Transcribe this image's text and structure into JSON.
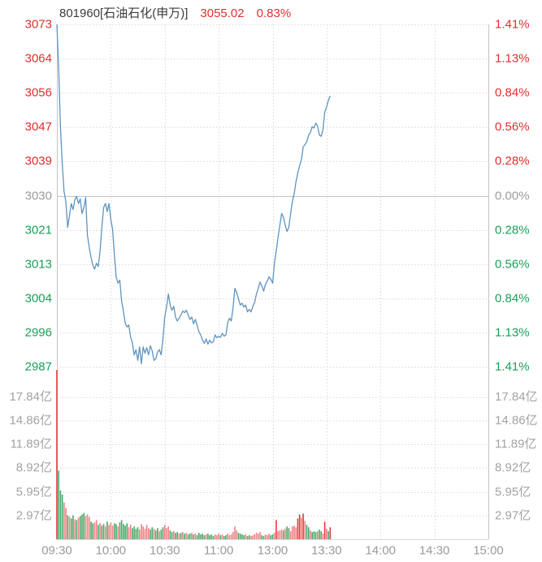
{
  "header": {
    "title": "801960[石油石化(申万)]",
    "price": "3055.02",
    "change_pct": "0.83%"
  },
  "colors": {
    "up": "#e12e2e",
    "down": "#18a058",
    "neutral": "#9c9c9c",
    "line": "#5f94bf",
    "grid": "#d9d9d9",
    "grid_strong": "#c3c3c3",
    "vol_red": "#ee8282",
    "vol_red_strong": "#e23a3a",
    "vol_green": "#4aa76a"
  },
  "price_axis": {
    "labels": [
      {
        "text": "3073",
        "tone": "up"
      },
      {
        "text": "3064",
        "tone": "up"
      },
      {
        "text": "3056",
        "tone": "up"
      },
      {
        "text": "3047",
        "tone": "up"
      },
      {
        "text": "3039",
        "tone": "up"
      },
      {
        "text": "3030",
        "tone": "neutral"
      },
      {
        "text": "3021",
        "tone": "down"
      },
      {
        "text": "3013",
        "tone": "down"
      },
      {
        "text": "3004",
        "tone": "down"
      },
      {
        "text": "2996",
        "tone": "down"
      },
      {
        "text": "2987",
        "tone": "down"
      }
    ]
  },
  "pct_axis": {
    "labels": [
      {
        "text": "1.41%",
        "tone": "up"
      },
      {
        "text": "1.13%",
        "tone": "up"
      },
      {
        "text": "0.84%",
        "tone": "up"
      },
      {
        "text": "0.56%",
        "tone": "up"
      },
      {
        "text": "0.28%",
        "tone": "up"
      },
      {
        "text": "0.00%",
        "tone": "neutral"
      },
      {
        "text": "0.28%",
        "tone": "down"
      },
      {
        "text": "0.56%",
        "tone": "down"
      },
      {
        "text": "0.84%",
        "tone": "down"
      },
      {
        "text": "1.13%",
        "tone": "down"
      },
      {
        "text": "1.41%",
        "tone": "down"
      }
    ]
  },
  "volume_axis": {
    "unit": "亿",
    "labels": [
      "17.84亿",
      "14.86亿",
      "11.89亿",
      "8.92亿",
      "5.95亿",
      "2.97亿"
    ],
    "tick_values": [
      17.84,
      14.86,
      11.89,
      8.92,
      5.95,
      2.97
    ]
  },
  "time_axis": {
    "labels": [
      "09:30",
      "10:00",
      "10:30",
      "11:00",
      "13:00",
      "13:30",
      "14:00",
      "14:30",
      "15:00"
    ]
  },
  "chart_data": {
    "type": "line",
    "title": "801960[石油石化(申万)]",
    "last_price": 3055.02,
    "change_percent": 0.83,
    "prev_close": 3030.1,
    "x_axis": {
      "labels": [
        "09:30",
        "10:00",
        "10:30",
        "11:00",
        "13:00",
        "13:30",
        "14:00",
        "14:30",
        "15:00"
      ],
      "sessions": [
        [
          "09:30",
          "11:30"
        ],
        [
          "13:00",
          "15:00"
        ]
      ],
      "total_minutes": 240,
      "last_minute": 152
    },
    "y_axis_price": {
      "min": 2987,
      "max": 3073,
      "ticks": [
        3073,
        3064,
        3056,
        3047,
        3039,
        3030,
        3021,
        3013,
        3004,
        2996,
        2987
      ]
    },
    "y_axis_percent": {
      "ticks": [
        1.41,
        1.13,
        0.84,
        0.56,
        0.28,
        0.0,
        -0.28,
        -0.56,
        -0.84,
        -1.13,
        -1.41
      ]
    },
    "y_axis_volume": {
      "unit": "亿",
      "ticks": [
        17.84,
        14.86,
        11.89,
        8.92,
        5.95,
        2.97
      ],
      "clip_max": 21.3
    },
    "price_points": [
      [
        0,
        3073
      ],
      [
        1,
        3062
      ],
      [
        2,
        3047
      ],
      [
        3,
        3038
      ],
      [
        4,
        3031
      ],
      [
        5,
        3028.5
      ],
      [
        6,
        3022
      ],
      [
        7,
        3025
      ],
      [
        8,
        3028
      ],
      [
        9,
        3026.5
      ],
      [
        10,
        3029
      ],
      [
        11,
        3029.8
      ],
      [
        12,
        3028
      ],
      [
        13,
        3029.2
      ],
      [
        14,
        3025.5
      ],
      [
        15,
        3027
      ],
      [
        16,
        3029.5
      ],
      [
        17,
        3020
      ],
      [
        18,
        3017
      ],
      [
        19,
        3014.5
      ],
      [
        20,
        3012.5
      ],
      [
        21,
        3011.5
      ],
      [
        22,
        3013
      ],
      [
        23,
        3012.2
      ],
      [
        24,
        3016
      ],
      [
        25,
        3022
      ],
      [
        26,
        3027
      ],
      [
        27,
        3028
      ],
      [
        28,
        3026
      ],
      [
        29,
        3028
      ],
      [
        30,
        3024
      ],
      [
        31,
        3021.5
      ],
      [
        32,
        3015
      ],
      [
        33,
        3009.5
      ],
      [
        34,
        3008
      ],
      [
        35,
        3008.8
      ],
      [
        36,
        3003.5
      ],
      [
        37,
        3001
      ],
      [
        38,
        2998
      ],
      [
        39,
        2997
      ],
      [
        40,
        2997.5
      ],
      [
        41,
        2994.5
      ],
      [
        42,
        2993
      ],
      [
        43,
        2990
      ],
      [
        44,
        2991.3
      ],
      [
        45,
        2988.6
      ],
      [
        46,
        2992
      ],
      [
        47,
        2987.8
      ],
      [
        48,
        2992
      ],
      [
        49,
        2990.4
      ],
      [
        50,
        2991.8
      ],
      [
        51,
        2990
      ],
      [
        52,
        2992.3
      ],
      [
        53,
        2991
      ],
      [
        54,
        2988.6
      ],
      [
        55,
        2989
      ],
      [
        56,
        2990.7
      ],
      [
        57,
        2991.3
      ],
      [
        58,
        2990
      ],
      [
        59,
        2994
      ],
      [
        60,
        2999.5
      ],
      [
        61,
        3002
      ],
      [
        62,
        3005.3
      ],
      [
        63,
        3002.5
      ],
      [
        64,
        3001.2
      ],
      [
        65,
        3002.2
      ],
      [
        66,
        2999.5
      ],
      [
        67,
        2998.5
      ],
      [
        68,
        2999.2
      ],
      [
        69,
        3000
      ],
      [
        70,
        3001
      ],
      [
        71,
        3000.6
      ],
      [
        72,
        3001.2
      ],
      [
        73,
        3000
      ],
      [
        74,
        2998.9
      ],
      [
        75,
        2999.5
      ],
      [
        76,
        2997.8
      ],
      [
        77,
        2998.9
      ],
      [
        78,
        2997.4
      ],
      [
        79,
        2995.8
      ],
      [
        80,
        2995
      ],
      [
        81,
        2993.7
      ],
      [
        82,
        2992.9
      ],
      [
        83,
        2994
      ],
      [
        84,
        2992.7
      ],
      [
        85,
        2993.7
      ],
      [
        86,
        2993
      ],
      [
        87,
        2993.3
      ],
      [
        88,
        2995
      ],
      [
        89,
        2994.3
      ],
      [
        90,
        2994.7
      ],
      [
        91,
        2994.4
      ],
      [
        92,
        2995.4
      ],
      [
        93,
        2994.7
      ],
      [
        94,
        2995
      ],
      [
        95,
        2998
      ],
      [
        96,
        2999.2
      ],
      [
        97,
        2998.5
      ],
      [
        98,
        3001.9
      ],
      [
        99,
        3006.7
      ],
      [
        100,
        3005.7
      ],
      [
        101,
        3004
      ],
      [
        102,
        3002.5
      ],
      [
        103,
        3003
      ],
      [
        104,
        3002
      ],
      [
        105,
        3002.5
      ],
      [
        106,
        3000.8
      ],
      [
        107,
        3001.4
      ],
      [
        108,
        3000.8
      ],
      [
        109,
        3002.2
      ],
      [
        110,
        3003.2
      ],
      [
        111,
        3005.3
      ],
      [
        112,
        3006.7
      ],
      [
        113,
        3008.3
      ],
      [
        114,
        3007.3
      ],
      [
        115,
        3006
      ],
      [
        116,
        3007.7
      ],
      [
        117,
        3008.5
      ],
      [
        118,
        3009.6
      ],
      [
        119,
        3009
      ],
      [
        120,
        3008
      ],
      [
        121,
        3013
      ],
      [
        122,
        3016
      ],
      [
        123,
        3019.5
      ],
      [
        124,
        3022.5
      ],
      [
        125,
        3025.5
      ],
      [
        126,
        3024.6
      ],
      [
        127,
        3022.6
      ],
      [
        128,
        3021
      ],
      [
        129,
        3022
      ],
      [
        130,
        3025.5
      ],
      [
        131,
        3028.5
      ],
      [
        132,
        3030.5
      ],
      [
        133,
        3033.5
      ],
      [
        134,
        3035.7
      ],
      [
        135,
        3037.5
      ],
      [
        136,
        3039
      ],
      [
        137,
        3042.2
      ],
      [
        138,
        3042.8
      ],
      [
        139,
        3043.5
      ],
      [
        140,
        3045.2
      ],
      [
        141,
        3045.8
      ],
      [
        142,
        3047.3
      ],
      [
        143,
        3047
      ],
      [
        144,
        3048.2
      ],
      [
        145,
        3047.5
      ],
      [
        146,
        3045.2
      ],
      [
        147,
        3044.9
      ],
      [
        148,
        3046.6
      ],
      [
        149,
        3051
      ],
      [
        150,
        3052.2
      ],
      [
        151,
        3053.9
      ],
      [
        152,
        3055.02
      ]
    ],
    "volume_bars": [
      [
        0,
        21.5,
        "R"
      ],
      [
        1,
        8.6,
        "g"
      ],
      [
        2,
        6.1,
        "g"
      ],
      [
        3,
        5.6,
        "g"
      ],
      [
        4,
        4.6,
        "r"
      ],
      [
        5,
        3.9,
        "r"
      ],
      [
        6,
        3.0,
        "g"
      ],
      [
        7,
        2.8,
        "r"
      ],
      [
        8,
        2.6,
        "g"
      ],
      [
        9,
        3.0,
        "g"
      ],
      [
        10,
        2.5,
        "r"
      ],
      [
        11,
        2.4,
        "g"
      ],
      [
        12,
        2.7,
        "r"
      ],
      [
        13,
        2.9,
        "g"
      ],
      [
        14,
        3.1,
        "g"
      ],
      [
        15,
        3.3,
        "g"
      ],
      [
        16,
        2.9,
        "r"
      ],
      [
        17,
        3.1,
        "r"
      ],
      [
        18,
        2.8,
        "r"
      ],
      [
        19,
        2.2,
        "g"
      ],
      [
        20,
        2.0,
        "g"
      ],
      [
        21,
        2.1,
        "r"
      ],
      [
        22,
        2.4,
        "r"
      ],
      [
        23,
        1.8,
        "g"
      ],
      [
        24,
        2.0,
        "r"
      ],
      [
        25,
        1.7,
        "g"
      ],
      [
        26,
        1.9,
        "g"
      ],
      [
        27,
        1.6,
        "r"
      ],
      [
        28,
        2.2,
        "g"
      ],
      [
        29,
        1.8,
        "r"
      ],
      [
        30,
        2.1,
        "r"
      ],
      [
        31,
        1.7,
        "r"
      ],
      [
        32,
        2.0,
        "g"
      ],
      [
        33,
        1.9,
        "g"
      ],
      [
        34,
        1.6,
        "r"
      ],
      [
        35,
        2.1,
        "g"
      ],
      [
        36,
        2.4,
        "g"
      ],
      [
        37,
        1.9,
        "g"
      ],
      [
        38,
        1.7,
        "g"
      ],
      [
        39,
        2.0,
        "g"
      ],
      [
        40,
        1.5,
        "r"
      ],
      [
        41,
        1.8,
        "r"
      ],
      [
        42,
        1.4,
        "g"
      ],
      [
        43,
        1.6,
        "g"
      ],
      [
        44,
        1.3,
        "g"
      ],
      [
        45,
        1.5,
        "g"
      ],
      [
        46,
        1.2,
        "r"
      ],
      [
        47,
        1.9,
        "r"
      ],
      [
        48,
        1.6,
        "r"
      ],
      [
        49,
        1.3,
        "r"
      ],
      [
        50,
        1.8,
        "r"
      ],
      [
        51,
        1.4,
        "r"
      ],
      [
        52,
        1.2,
        "g"
      ],
      [
        53,
        1.5,
        "g"
      ],
      [
        54,
        1.3,
        "r"
      ],
      [
        55,
        1.1,
        "g"
      ],
      [
        56,
        1.4,
        "g"
      ],
      [
        57,
        1.0,
        "r"
      ],
      [
        58,
        1.2,
        "g"
      ],
      [
        59,
        1.5,
        "g"
      ],
      [
        60,
        1.8,
        "r"
      ],
      [
        61,
        1.4,
        "r"
      ],
      [
        62,
        1.6,
        "r"
      ],
      [
        63,
        1.1,
        "g"
      ],
      [
        64,
        0.9,
        "g"
      ],
      [
        65,
        1.0,
        "r"
      ],
      [
        66,
        0.8,
        "g"
      ],
      [
        67,
        0.9,
        "g"
      ],
      [
        68,
        0.7,
        "r"
      ],
      [
        69,
        0.8,
        "g"
      ],
      [
        70,
        0.9,
        "r"
      ],
      [
        71,
        0.7,
        "g"
      ],
      [
        72,
        0.8,
        "r"
      ],
      [
        73,
        0.6,
        "g"
      ],
      [
        74,
        0.7,
        "g"
      ],
      [
        75,
        0.8,
        "r"
      ],
      [
        76,
        0.6,
        "g"
      ],
      [
        77,
        0.7,
        "r"
      ],
      [
        78,
        0.5,
        "g"
      ],
      [
        79,
        0.8,
        "g"
      ],
      [
        80,
        0.6,
        "g"
      ],
      [
        81,
        0.7,
        "g"
      ],
      [
        82,
        0.5,
        "g"
      ],
      [
        83,
        0.6,
        "r"
      ],
      [
        84,
        0.7,
        "g"
      ],
      [
        85,
        0.5,
        "g"
      ],
      [
        86,
        0.6,
        "g"
      ],
      [
        87,
        0.4,
        "g"
      ],
      [
        88,
        0.6,
        "r"
      ],
      [
        89,
        0.5,
        "r"
      ],
      [
        90,
        0.7,
        "r"
      ],
      [
        91,
        0.5,
        "g"
      ],
      [
        92,
        0.6,
        "r"
      ],
      [
        93,
        0.4,
        "g"
      ],
      [
        94,
        0.5,
        "g"
      ],
      [
        95,
        0.7,
        "r"
      ],
      [
        96,
        0.5,
        "r"
      ],
      [
        97,
        0.6,
        "r"
      ],
      [
        98,
        0.9,
        "r"
      ],
      [
        99,
        1.6,
        "r"
      ],
      [
        100,
        1.1,
        "r"
      ],
      [
        101,
        0.8,
        "g"
      ],
      [
        102,
        0.7,
        "g"
      ],
      [
        103,
        0.6,
        "g"
      ],
      [
        104,
        0.5,
        "g"
      ],
      [
        105,
        0.6,
        "r"
      ],
      [
        106,
        0.4,
        "g"
      ],
      [
        107,
        0.5,
        "g"
      ],
      [
        108,
        0.4,
        "r"
      ],
      [
        109,
        0.5,
        "r"
      ],
      [
        110,
        0.6,
        "r"
      ],
      [
        111,
        0.8,
        "r"
      ],
      [
        112,
        0.7,
        "r"
      ],
      [
        113,
        0.9,
        "r"
      ],
      [
        114,
        0.5,
        "g"
      ],
      [
        115,
        0.4,
        "g"
      ],
      [
        116,
        0.6,
        "r"
      ],
      [
        117,
        0.5,
        "r"
      ],
      [
        118,
        0.7,
        "r"
      ],
      [
        119,
        0.5,
        "g"
      ],
      [
        120,
        0.6,
        "g"
      ],
      [
        121,
        0.8,
        "r"
      ],
      [
        122,
        2.4,
        "R"
      ],
      [
        123,
        1.0,
        "r"
      ],
      [
        124,
        1.1,
        "r"
      ],
      [
        125,
        1.2,
        "r"
      ],
      [
        126,
        1.1,
        "g"
      ],
      [
        127,
        1.3,
        "r"
      ],
      [
        128,
        1.6,
        "g"
      ],
      [
        129,
        1.4,
        "g"
      ],
      [
        130,
        1.0,
        "r"
      ],
      [
        131,
        1.6,
        "r"
      ],
      [
        132,
        1.7,
        "r"
      ],
      [
        133,
        1.5,
        "r"
      ],
      [
        134,
        2.6,
        "R"
      ],
      [
        135,
        3.1,
        "R"
      ],
      [
        136,
        2.7,
        "r"
      ],
      [
        137,
        3.2,
        "R"
      ],
      [
        138,
        2.3,
        "r"
      ],
      [
        139,
        1.8,
        "g"
      ],
      [
        140,
        1.5,
        "g"
      ],
      [
        141,
        1.1,
        "r"
      ],
      [
        142,
        0.9,
        "g"
      ],
      [
        143,
        1.0,
        "g"
      ],
      [
        144,
        0.9,
        "g"
      ],
      [
        145,
        1.0,
        "r"
      ],
      [
        146,
        1.2,
        "g"
      ],
      [
        147,
        1.0,
        "g"
      ],
      [
        148,
        0.7,
        "r"
      ],
      [
        149,
        2.2,
        "R"
      ],
      [
        150,
        1.3,
        "r"
      ],
      [
        151,
        1.0,
        "g"
      ],
      [
        152,
        1.5,
        "R"
      ]
    ]
  }
}
